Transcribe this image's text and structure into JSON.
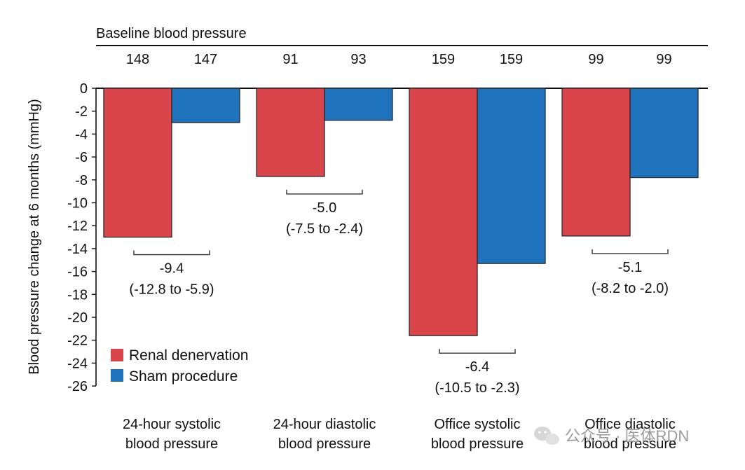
{
  "chart_data": {
    "type": "bar",
    "ylabel": "Blood pressure change at 6 months (mmHg)",
    "ylim": [
      -26,
      0
    ],
    "yticks": [
      "0",
      "-2",
      "-4",
      "-6",
      "-8",
      "-10",
      "-12",
      "-14",
      "-16",
      "-18",
      "-20",
      "-22",
      "-24",
      "-26"
    ],
    "baseline_title": "Baseline blood pressure",
    "categories": [
      {
        "line1": "24-hour systolic",
        "line2": "blood pressure",
        "baseline": [
          "148",
          "147"
        ],
        "diff": "-9.4",
        "ci": "(-12.8 to -5.9)"
      },
      {
        "line1": "24-hour diastolic",
        "line2": "blood pressure",
        "baseline": [
          "91",
          "93"
        ],
        "diff": "-5.0",
        "ci": "(-7.5 to -2.4)"
      },
      {
        "line1": "Office systolic",
        "line2": "blood pressure",
        "baseline": [
          "159",
          "159"
        ],
        "diff": "-6.4",
        "ci": "(-10.5 to -2.3)"
      },
      {
        "line1": "Office diastolic",
        "line2": "blood pressure",
        "baseline": [
          "99",
          "99"
        ],
        "diff": "-5.1",
        "ci": "(-8.2 to -2.0)"
      }
    ],
    "series": [
      {
        "name": "Renal denervation",
        "color": "#d9454b",
        "values": [
          -13.0,
          -7.7,
          -21.6,
          -12.9
        ]
      },
      {
        "name": "Sham procedure",
        "color": "#1f73bd",
        "values": [
          -3.0,
          -2.8,
          -15.3,
          -7.8
        ]
      }
    ],
    "legend": "bottom-left"
  },
  "watermark": {
    "text": "公众号 · 医体RDN",
    "icon": "wechat-icon"
  }
}
